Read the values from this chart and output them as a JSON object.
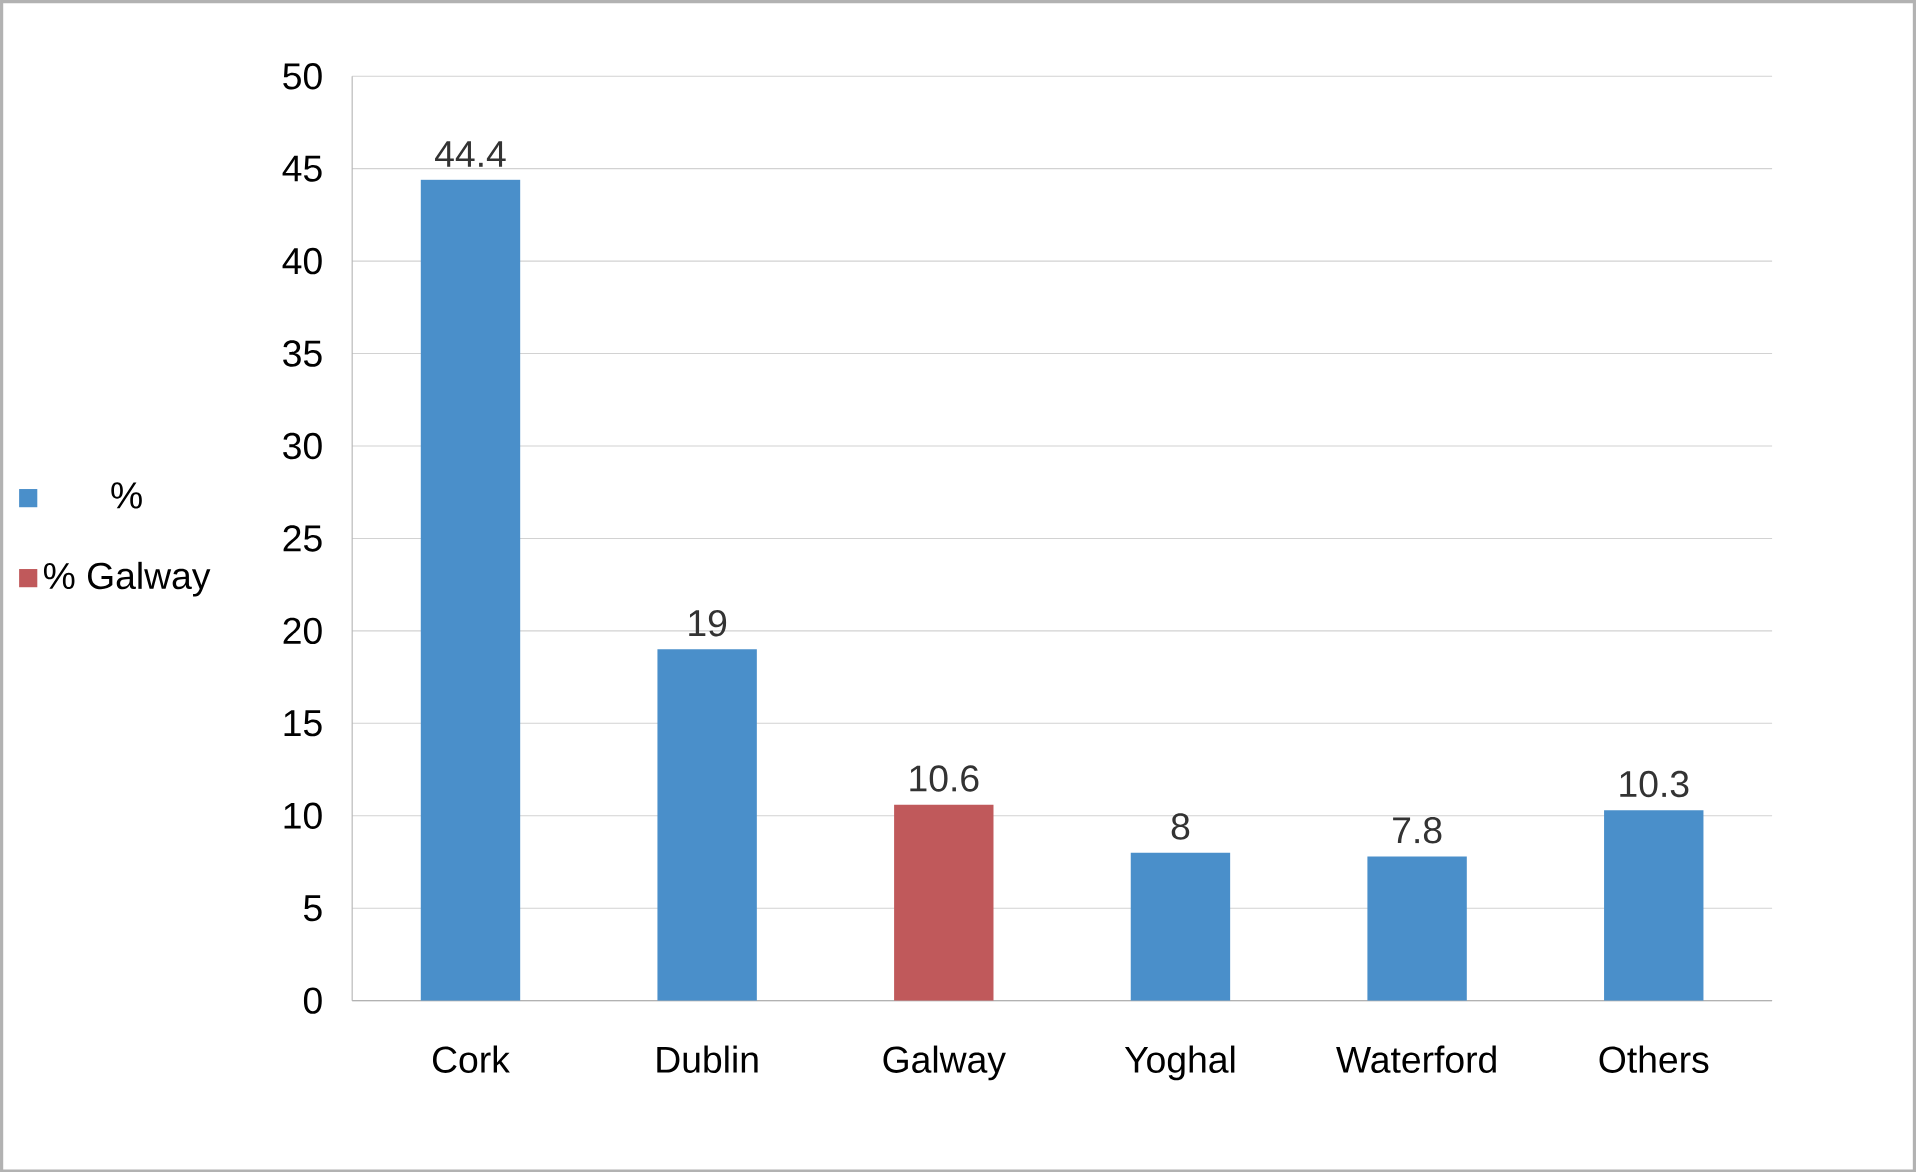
{
  "chart_data": {
    "type": "bar",
    "categories": [
      "Cork",
      "Dublin",
      "Galway",
      "Yoghal",
      "Waterford",
      "Others"
    ],
    "series": [
      {
        "name": "%",
        "color": "#4a8fca",
        "values": [
          44.4,
          19,
          null,
          8,
          7.8,
          10.3
        ]
      },
      {
        "name": "% Galway",
        "color": "#c0595b",
        "values": [
          null,
          null,
          10.6,
          null,
          null,
          null
        ]
      }
    ],
    "ylim": [
      0,
      50
    ],
    "yticks": [
      0,
      5,
      10,
      15,
      20,
      25,
      30,
      35,
      40,
      45,
      50
    ],
    "grid": "y",
    "legend": "left",
    "data_labels": true
  }
}
